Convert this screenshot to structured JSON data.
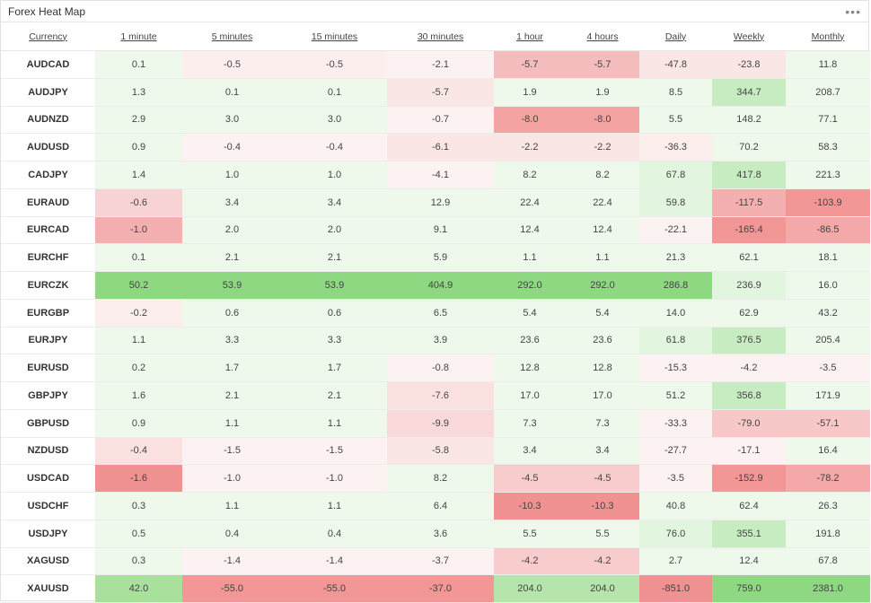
{
  "widget": {
    "title": "Forex Heat Map",
    "menu_icon": "more-horizontal-icon"
  },
  "columns": [
    "Currency",
    "1 minute",
    "5 minutes",
    "15 minutes",
    "30 minutes",
    "1 hour",
    "4 hours",
    "Daily",
    "Weekly",
    "Monthly"
  ],
  "rows": [
    {
      "symbol": "AUDCAD",
      "values": [
        "0.1",
        "-0.5",
        "-0.5",
        "-2.1",
        "-5.7",
        "-5.7",
        "-47.8",
        "-23.8",
        "11.8"
      ]
    },
    {
      "symbol": "AUDJPY",
      "values": [
        "1.3",
        "0.1",
        "0.1",
        "-5.7",
        "1.9",
        "1.9",
        "8.5",
        "344.7",
        "208.7"
      ]
    },
    {
      "symbol": "AUDNZD",
      "values": [
        "2.9",
        "3.0",
        "3.0",
        "-0.7",
        "-8.0",
        "-8.0",
        "5.5",
        "148.2",
        "77.1"
      ]
    },
    {
      "symbol": "AUDUSD",
      "values": [
        "0.9",
        "-0.4",
        "-0.4",
        "-6.1",
        "-2.2",
        "-2.2",
        "-36.3",
        "70.2",
        "58.3"
      ]
    },
    {
      "symbol": "CADJPY",
      "values": [
        "1.4",
        "1.0",
        "1.0",
        "-4.1",
        "8.2",
        "8.2",
        "67.8",
        "417.8",
        "221.3"
      ]
    },
    {
      "symbol": "EURAUD",
      "values": [
        "-0.6",
        "3.4",
        "3.4",
        "12.9",
        "22.4",
        "22.4",
        "59.8",
        "-117.5",
        "-103.9"
      ]
    },
    {
      "symbol": "EURCAD",
      "values": [
        "-1.0",
        "2.0",
        "2.0",
        "9.1",
        "12.4",
        "12.4",
        "-22.1",
        "-165.4",
        "-86.5"
      ]
    },
    {
      "symbol": "EURCHF",
      "values": [
        "0.1",
        "2.1",
        "2.1",
        "5.9",
        "1.1",
        "1.1",
        "21.3",
        "62.1",
        "18.1"
      ]
    },
    {
      "symbol": "EURCZK",
      "values": [
        "50.2",
        "53.9",
        "53.9",
        "404.9",
        "292.0",
        "292.0",
        "286.8",
        "236.9",
        "16.0"
      ]
    },
    {
      "symbol": "EURGBP",
      "values": [
        "-0.2",
        "0.6",
        "0.6",
        "6.5",
        "5.4",
        "5.4",
        "14.0",
        "62.9",
        "43.2"
      ]
    },
    {
      "symbol": "EURJPY",
      "values": [
        "1.1",
        "3.3",
        "3.3",
        "3.9",
        "23.6",
        "23.6",
        "61.8",
        "376.5",
        "205.4"
      ]
    },
    {
      "symbol": "EURUSD",
      "values": [
        "0.2",
        "1.7",
        "1.7",
        "-0.8",
        "12.8",
        "12.8",
        "-15.3",
        "-4.2",
        "-3.5"
      ]
    },
    {
      "symbol": "GBPJPY",
      "values": [
        "1.6",
        "2.1",
        "2.1",
        "-7.6",
        "17.0",
        "17.0",
        "51.2",
        "356.8",
        "171.9"
      ]
    },
    {
      "symbol": "GBPUSD",
      "values": [
        "0.9",
        "1.1",
        "1.1",
        "-9.9",
        "7.3",
        "7.3",
        "-33.3",
        "-79.0",
        "-57.1"
      ]
    },
    {
      "symbol": "NZDUSD",
      "values": [
        "-0.4",
        "-1.5",
        "-1.5",
        "-5.8",
        "3.4",
        "3.4",
        "-27.7",
        "-17.1",
        "16.4"
      ]
    },
    {
      "symbol": "USDCAD",
      "values": [
        "-1.6",
        "-1.0",
        "-1.0",
        "8.2",
        "-4.5",
        "-4.5",
        "-3.5",
        "-152.9",
        "-78.2"
      ]
    },
    {
      "symbol": "USDCHF",
      "values": [
        "0.3",
        "1.1",
        "1.1",
        "6.4",
        "-10.3",
        "-10.3",
        "40.8",
        "62.4",
        "26.3"
      ]
    },
    {
      "symbol": "USDJPY",
      "values": [
        "0.5",
        "0.4",
        "0.4",
        "3.6",
        "5.5",
        "5.5",
        "76.0",
        "355.1",
        "191.8"
      ]
    },
    {
      "symbol": "XAGUSD",
      "values": [
        "0.3",
        "-1.4",
        "-1.4",
        "-3.7",
        "-4.2",
        "-4.2",
        "2.7",
        "12.4",
        "67.8"
      ]
    },
    {
      "symbol": "XAUUSD",
      "values": [
        "42.0",
        "-55.0",
        "-55.0",
        "-37.0",
        "204.0",
        "204.0",
        "-851.0",
        "759.0",
        "2381.0"
      ]
    }
  ],
  "cell_colors": [
    [
      "#eef9ec",
      "#fdeeee",
      "#fdeeee",
      "#fdf2f2",
      "#f4bcbc",
      "#f4bcbc",
      "#fbe6e6",
      "#fbe6e6",
      "#eef9ec"
    ],
    [
      "#eef9ec",
      "#eef9ec",
      "#eef9ec",
      "#fbe6e6",
      "#eef9ec",
      "#eef9ec",
      "#eef9ec",
      "#c8ecc1",
      "#eef9ec"
    ],
    [
      "#eef9ec",
      "#eef9ec",
      "#eef9ec",
      "#fdf2f2",
      "#f4a3a3",
      "#f4a3a3",
      "#eef9ec",
      "#eef9ec",
      "#eef9ec"
    ],
    [
      "#eef9ec",
      "#fdf2f2",
      "#fdf2f2",
      "#fbe6e6",
      "#fbe6e6",
      "#fbe6e6",
      "#fdeeee",
      "#eef9ec",
      "#eef9ec"
    ],
    [
      "#eef9ec",
      "#eef9ec",
      "#eef9ec",
      "#fdf2f2",
      "#eef9ec",
      "#eef9ec",
      "#e2f5de",
      "#c8ecc1",
      "#eef9ec"
    ],
    [
      "#f8d3d3",
      "#eef9ec",
      "#eef9ec",
      "#eef9ec",
      "#eef9ec",
      "#eef9ec",
      "#e2f5de",
      "#f4b0b0",
      "#f29696"
    ],
    [
      "#f4b0b0",
      "#eef9ec",
      "#eef9ec",
      "#eef9ec",
      "#eef9ec",
      "#eef9ec",
      "#fdf2f2",
      "#f29696",
      "#f4a8a8"
    ],
    [
      "#eef9ec",
      "#eef9ec",
      "#eef9ec",
      "#eef9ec",
      "#eef9ec",
      "#eef9ec",
      "#eef9ec",
      "#eef9ec",
      "#eef9ec"
    ],
    [
      "#8fd882",
      "#8fd882",
      "#8fd882",
      "#8fd882",
      "#8fd882",
      "#8fd882",
      "#8fd882",
      "#e2f5de",
      "#eef9ec"
    ],
    [
      "#fdeeee",
      "#eef9ec",
      "#eef9ec",
      "#eef9ec",
      "#eef9ec",
      "#eef9ec",
      "#eef9ec",
      "#eef9ec",
      "#eef9ec"
    ],
    [
      "#eef9ec",
      "#eef9ec",
      "#eef9ec",
      "#eef9ec",
      "#eef9ec",
      "#eef9ec",
      "#e2f5de",
      "#c8ecc1",
      "#eef9ec"
    ],
    [
      "#eef9ec",
      "#eef9ec",
      "#eef9ec",
      "#fdf2f2",
      "#eef9ec",
      "#eef9ec",
      "#fdf2f2",
      "#fdf2f2",
      "#fdf2f2"
    ],
    [
      "#eef9ec",
      "#eef9ec",
      "#eef9ec",
      "#fbe0e0",
      "#eef9ec",
      "#eef9ec",
      "#eef9ec",
      "#c8ecc1",
      "#eef9ec"
    ],
    [
      "#eef9ec",
      "#eef9ec",
      "#eef9ec",
      "#f9d9d9",
      "#eef9ec",
      "#eef9ec",
      "#fdf2f2",
      "#f8c8c8",
      "#f8c8c8"
    ],
    [
      "#fbe0e0",
      "#fdf2f2",
      "#fdf2f2",
      "#fbe6e6",
      "#eef9ec",
      "#eef9ec",
      "#fdf2f2",
      "#fdf2f2",
      "#eef9ec"
    ],
    [
      "#f09292",
      "#fdf2f2",
      "#fdf2f2",
      "#eef9ec",
      "#f8cccc",
      "#f8cccc",
      "#fdf2f2",
      "#f29696",
      "#f4a8a8"
    ],
    [
      "#eef9ec",
      "#eef9ec",
      "#eef9ec",
      "#eef9ec",
      "#f09292",
      "#f09292",
      "#eef9ec",
      "#eef9ec",
      "#eef9ec"
    ],
    [
      "#eef9ec",
      "#eef9ec",
      "#eef9ec",
      "#eef9ec",
      "#eef9ec",
      "#eef9ec",
      "#e2f5de",
      "#c8ecc1",
      "#eef9ec"
    ],
    [
      "#eef9ec",
      "#fdf2f2",
      "#fdf2f2",
      "#fdf2f2",
      "#f8cccc",
      "#f8cccc",
      "#eef9ec",
      "#eef9ec",
      "#eef9ec"
    ],
    [
      "#a8e09c",
      "#f29696",
      "#f29696",
      "#f29696",
      "#b5e5aa",
      "#b5e5aa",
      "#f09292",
      "#8fd882",
      "#8fd882"
    ]
  ]
}
